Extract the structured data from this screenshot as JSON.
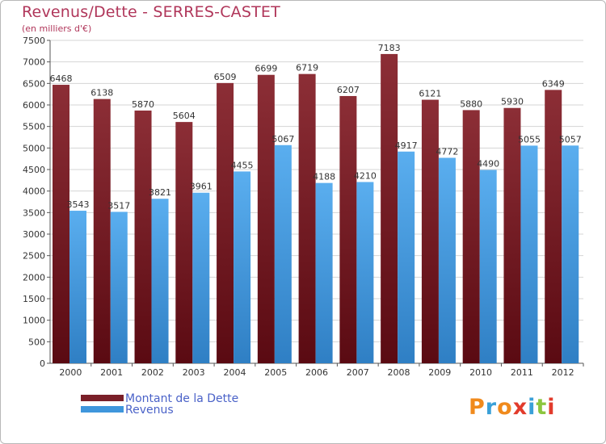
{
  "header": {
    "title": "Revenus/Dette - SERRES-CASTET",
    "subtitle": "(en milliers d'€)"
  },
  "colors": {
    "dette": "#7a1f28",
    "dette_light": "#8c2e36",
    "revenus": "#3f96dc",
    "revenus_light": "#5aaeef"
  },
  "chart_data": {
    "type": "bar",
    "categories": [
      "2000",
      "2001",
      "2002",
      "2003",
      "2004",
      "2005",
      "2006",
      "2007",
      "2008",
      "2009",
      "2010",
      "2011",
      "2012"
    ],
    "series": [
      {
        "name": "Montant de la Dette",
        "values": [
          6468,
          6138,
          5870,
          5604,
          6509,
          6699,
          6719,
          6207,
          7183,
          6121,
          5880,
          5930,
          6349
        ]
      },
      {
        "name": "Revenus",
        "values": [
          3543,
          3517,
          3821,
          3961,
          4455,
          5067,
          4188,
          4210,
          4917,
          4772,
          4490,
          5055,
          5057
        ]
      }
    ],
    "ylim": [
      0,
      7500
    ],
    "yticks": [
      0,
      500,
      1000,
      1500,
      2000,
      2500,
      3000,
      3500,
      4000,
      4500,
      5000,
      5500,
      6000,
      6500,
      7000,
      7500
    ],
    "grid": true,
    "legend_position": "bottom-left"
  },
  "logo": {
    "letters": [
      "P",
      "r",
      "o",
      "x",
      "i",
      "t",
      "i"
    ]
  }
}
